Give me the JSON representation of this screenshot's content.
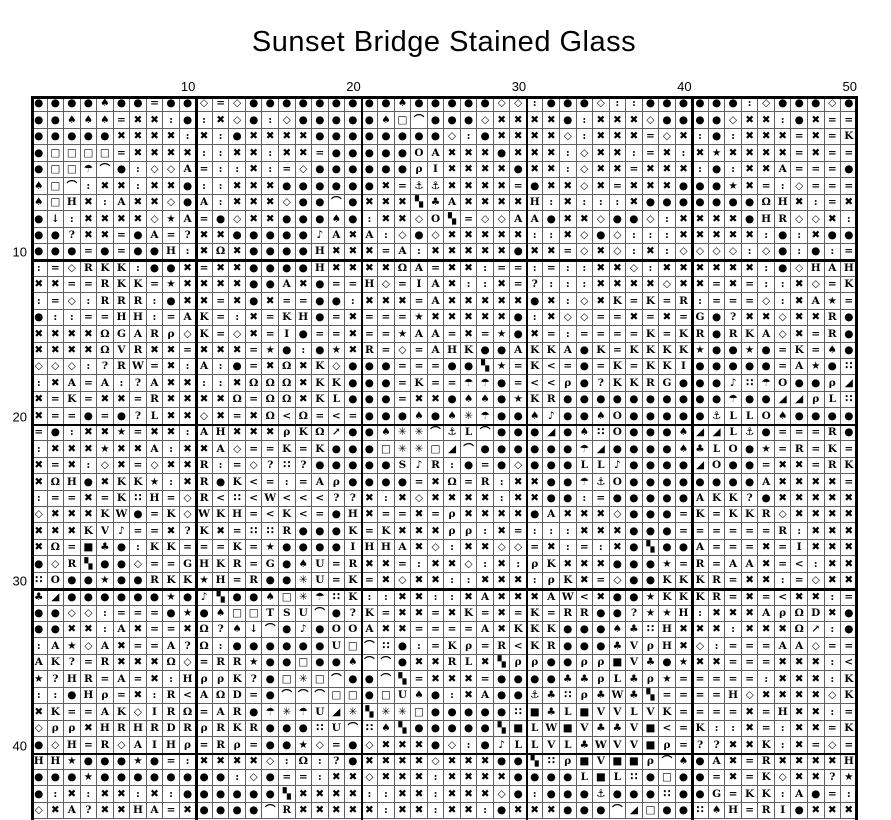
{
  "title": "Sunset Bridge Stained Glass",
  "rulers": {
    "top": [
      "10",
      "20",
      "30",
      "40",
      "50"
    ],
    "left": [
      "10",
      "20",
      "30",
      "40"
    ]
  },
  "colors": {
    "background": "#ffffff",
    "symbol": "#000000",
    "minor_grid": "#606060",
    "major_grid": "#000000"
  },
  "grid": {
    "columns": 50,
    "rows_visible": 44,
    "major_line_every": 10,
    "symbols_legend": [
      "●",
      "✖",
      "◇",
      "□",
      "■",
      "★",
      "✳",
      "=",
      ":",
      "<",
      "?",
      "♠",
      "♣",
      "☂",
      "⚓",
      "↓",
      "↗",
      "⌒",
      "Ω",
      "ρ",
      "♪",
      "▚",
      "∷",
      "◢",
      "A",
      "D",
      "G",
      "H",
      "I",
      "K",
      "L",
      "O",
      "R",
      "S",
      "T",
      "U",
      "V",
      "W"
    ],
    "rows": [
      "●●●●♠●●=●●◇=◇●●●●●●●●●♠●●●●●◇◇:●●●◇::●●●●●●:◇●●●◇●",
      "●●♠♠♠=✖✖:●:✖◇●:◇●●●●●♠□⌒●●●◇✖✖✖✖●:✖✖✖◇●●●●◇✖✖:●✖==",
      "●●●●●✖✖✖✖:✖:●✖✖✖✖●●●●●●●●◇:●✖✖✖✖◇:✖✖✖=◇✖:●:✖✖✖=✖=K",
      "●□□□□=✖✖✖✖::✖✖:✖✖=●●●●●OA✖✖✖●✖✖✖:◇✖✖:=✖:✖★✖✖✖✖=✖==",
      "●□□☂⌒●:◇◇A=::✖:=◇●●●●●●ρI✖✖✖✖●✖✖:◇✖✖=✖✖✖:●:✖✖A===●",
      "♠□⌒:✖✖:✖✖●::✖✖✖●●●●●●✖=⚓⚓✖✖✖✖=●✖✖◇✖=✖✖✖●●●★✖=:◇===",
      "♠□H✖:A✖✖◇●A:✖✖✖◇●●⌒●✖✖✖▚♣A✖✖✖✖H:✖:::✖●●●●●●●ΩH✖:=✖",
      "●↓:✖✖✖✖◇★A=●◇✖✖●●●♠●:✖✖◇O▚=◇◇AA●✖✖◇●●◇:✖✖✖✖●HR◇◇✖:",
      "●●?✖✖=●A=?✖✖●●●●●♪A✖A:◇●◇✖✖✖✖✖::✖◇●◇:::✖✖✖✖✖:●:✖●●",
      "●●●=●=●●H:✖Ω✖●●●●H✖✖✖=A:✖✖✖✖✖●✖✖=◇✖◇:✖:◇◇◇◇:◇●:●:=",
      ":=◇RKK:●●✖=✖✖●●●●H✖✖✖✖ΩA=✖✖:==:=::✖✖◇:✖✖✖✖✖✖:●◇HAH",
      "✖✖==RKK=★✖✖✖✖●●A✖●==H◇=IA✖::✖=?:::✖✖✖✖◇✖✖=✖=::✖◇=K",
      ":=◇:RRR:●✖✖=✖●✖==●●:✖✖✖=A✖✖✖✖✖●✖:◇✖K=K=R:===◇:✖A★=",
      "●::==HH:=AK=:✖=KH●=✖===★✖✖✖✖✖●:✖◇◇==✖=✖=G●?✖✖◇✖✖R●",
      "✖✖✖✖ΩGARρ◇K=◇✖=I●==✖==★AA=✖=★●✖=:====K=KR●RKA◇✖=R●",
      "✖✖✖✖ΩVR✖✖=✖✖✖=★●:●★✖R=◇=AHK●●AKKA●K=KKKK★●●★●=K=♠●",
      "◇◇◇:?RW=✖:A:●=✖Ω✖K◇●●●===●●▚★=K<=●=K=KKI●●●●●=A★●∷",
      ":✖A=A:?A✖✖::✖ΩΩΩ✖KK●●●=K==☂☂●=<<ρ●?KKRG●●●♪∷☂O●●ρ◢",
      "✖=K=✖✖=R✖✖✖✖Ω=ΩΩ✖KL●●●=✖✖●♠♠●★KR●●●●●●●●●●☂●●◢◢ρL∷",
      "✖==●=●?L✖✖◇✖=✖Ω<Ω=<=●●●♠●♠✳☂●●♠♪●●♠O●●●●●⚓LLO♠●●●●",
      "=●:✖✖★=✖✖:AH✖✖✖ρKΩ↗●●♠✳✳⌒⚓L⌒●●●◢●♠∷O●●●♠◢◢L⚓●===R●",
      ":✖✖✖★✖✖A:✖✖A◇==K=K●●●□✳✳□◢⌒●●●●●●☂◢●●●●♠♣LO●★=R=K=",
      "✖=✖:◇✖=◇✖✖R:=◇?∷?●●●●●S♪R:●=●◇●●●LL♪●●●●◢O●●=✖✖=RK",
      "✖ΩH●✖KK★:✖R●K<=:=Aρ●●●●=✖Ω=R:✖✖●●☂⚓O●●●●●●●●A✖✖✖✖=",
      ":==✖=K∷H=◇R<∷<W<<<??✖:✖◇✖✖✖✖:✖✖●●:=●●●●●AKK?●✖✖✖✖✖",
      "◇✖✖✖KW●=K◇WKH=<K<=●H✖==✖=ρ✖✖✖✖●A✖✖✖◇●●●=K=KKR◇✖✖✖✖",
      "✖✖✖KV♪==✖?K✖=∷∷R●●●K=K✖✖✖ρρ:✖=:::✖✖✖●●●======R:✖✖✖",
      "✖Ω=■♣●:KK===K=★●●●●IHHA✖◇:✖✖◇◇=✖:=:✖●▚●●A===✖=I✖✖✖",
      "●◇R▚●●◇==GHKR=G●♠U=R✖✖=:✖✖◇:✖:ρK✖✖✖●●●★=R=AA✖=<:✖✖",
      "∷O●●★●●RKK★H=R●●✳U=K=✖◇✖✖::✖✖✖:ρK✖=◇●●KKKR=✖✖:=◇✖✖",
      "♣◢●●●●●●★●♪▚●●♠□✳☂∷K::✖✖::✖A✖✖✖AW<✖●●★KKKR=✖=<✖✖:=",
      "●●◇◇:===●★●♠□□TSU⌒●?K=✖✖=✖K=✖=K=RR●●?★★H:✖✖✖AρΩD✖●",
      "●●✖✖:A✖==✖Ω?♠↓⌒●♪●OOA✖✖====A✖KKK●●●♠♣∷H✖✖✖:✖✖✖Ω↗:●",
      ":A★◇A✖==A?Ω:●●●●●●U□⌒∷●:=Kρ=R<KR●●●♣VρH✖◇:===AA◇==",
      "AK?=R✖✖✖Ω◇=RR★●●□●●♠⌒⌒●✖✖RL✖▚ρρ●●ρρ■V♣●★✖✖===✖✖✖:<",
      "★?HR=A=✖:HρρK?●□✳□⌒●●⌒▚=✖✖✖=●●●●♣♣ρL♣ρ★=====:✖✖✖:K",
      "::●Hρ=✖:R<AΩD=●⌒⌒⌒□□●□U♠●:✖A●●⚓♣∷ρ♣W♣▚====H◇✖✖✖✖◇K",
      "✖K==AK◇IRΩ=AR●☂✳☂U◢✳▚✳✳□●●●●●∷■♣L■VVLVK====✖=H✖✖:=",
      "◇ρρ✖HRHRDRρRKR●●●∷U⌒∷♠▚●●●●●▚■LW■V♣♣V■<=K::✖=:✖✖=K",
      "●◇H=R◇AIHρ=Rρ=●●★◇=●◇✖✖✖●◇:●♪LLVL♣WVV■ρ=??✖✖K:✖=◇=",
      "HH★●●●★●=:✖✖✖✖◇:Ω:?●✖✖✖✖◇✖✖✖●●▚∷ρ■V■■ρ⌒♠●A✖=R✖✖✖✖H",
      "●●●★●●●●●●●●:◇●==:✖✖◇✖✖✖:✖✖✖✖●●●●L■L∷●□●●=✖=K◇✖✖?★",
      "●:✖:✖✖:✖:●●●●●●▚✖✖✖✖::✖✖:✖✖✖◇●:●●●⚓●●●∷●●G=KK:A●=:",
      "◇✖A?✖✖HA=✖●●●●⌒R✖✖✖✖✖:✖✖:✖✖:●✖✖✖●●●⌒◢□●●∷♠H=RI●✖✖✖"
    ]
  }
}
